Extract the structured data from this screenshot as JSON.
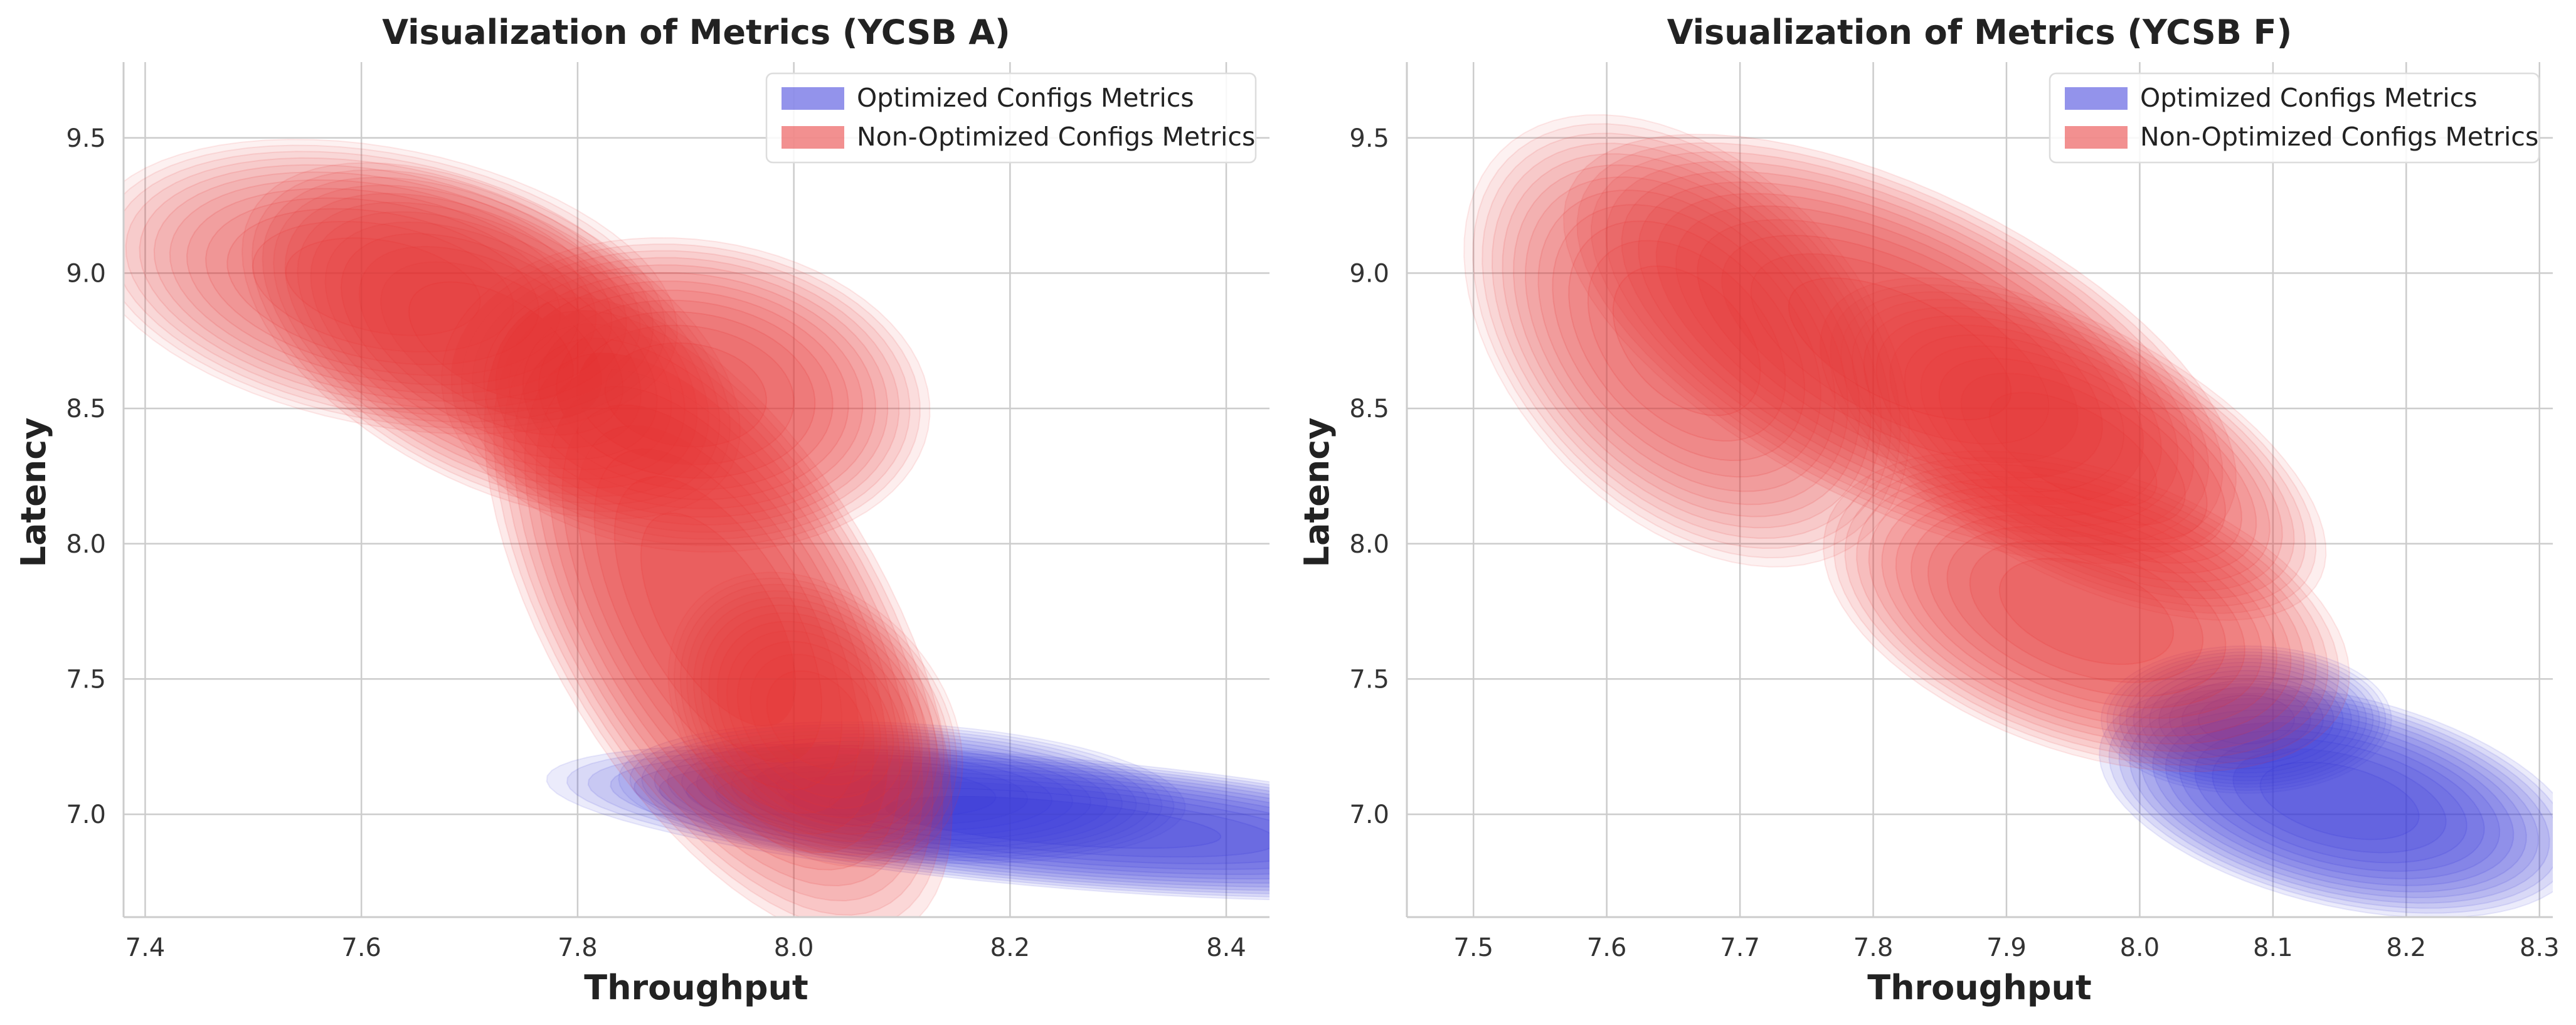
{
  "chart_data": [
    {
      "type": "kde",
      "title": "Visualization of Metrics (YCSB A)",
      "xlabel": "Throughput",
      "ylabel": "Latency",
      "xlim": [
        7.38,
        8.44
      ],
      "ylim": [
        6.62,
        9.78
      ],
      "xticks": [
        7.4,
        7.6,
        7.8,
        8.0,
        8.2,
        8.4
      ],
      "yticks": [
        7.0,
        7.5,
        8.0,
        8.5,
        9.0,
        9.5
      ],
      "grid": true,
      "legend_position": "top-right",
      "series": [
        {
          "name": "Optimized Configs Metrics",
          "color": "#3b3bdb",
          "modes": [
            {
              "x": 8.24,
              "y": 6.97,
              "sx": 0.13,
              "sy": 0.08,
              "rho": -0.55,
              "w": 1.0
            },
            {
              "x": 8.1,
              "y": 7.08,
              "sx": 0.09,
              "sy": 0.09,
              "rho": -0.2,
              "w": 0.45
            }
          ]
        },
        {
          "name": "Non-Optimized Configs Metrics",
          "color": "#e83535",
          "modes": [
            {
              "x": 7.93,
              "y": 7.72,
              "sx": 0.06,
              "sy": 0.33,
              "rho": -0.6,
              "w": 1.0
            },
            {
              "x": 7.9,
              "y": 8.55,
              "sx": 0.07,
              "sy": 0.18,
              "rho": -0.1,
              "w": 0.7
            },
            {
              "x": 7.72,
              "y": 8.75,
              "sx": 0.07,
              "sy": 0.2,
              "rho": -0.5,
              "w": 0.75
            },
            {
              "x": 7.62,
              "y": 8.95,
              "sx": 0.1,
              "sy": 0.2,
              "rho": -0.3,
              "w": 0.3
            },
            {
              "x": 8.02,
              "y": 7.35,
              "sx": 0.05,
              "sy": 0.2,
              "rho": -0.3,
              "w": 0.3
            }
          ]
        }
      ]
    },
    {
      "type": "kde",
      "title": "Visualization of Metrics (YCSB F)",
      "xlabel": "Throughput",
      "ylabel": "Latency",
      "xlim": [
        7.45,
        8.31
      ],
      "ylim": [
        6.62,
        9.78
      ],
      "xticks": [
        7.5,
        7.6,
        7.7,
        7.8,
        7.9,
        8.0,
        8.1,
        8.2,
        8.3
      ],
      "yticks": [
        7.0,
        7.5,
        8.0,
        8.5,
        9.0,
        9.5
      ],
      "grid": true,
      "legend_position": "top-right",
      "series": [
        {
          "name": "Optimized Configs Metrics",
          "color": "#3b3bdb",
          "modes": [
            {
              "x": 8.15,
              "y": 7.05,
              "sx": 0.05,
              "sy": 0.12,
              "rho": -0.4,
              "w": 1.0
            },
            {
              "x": 8.08,
              "y": 7.35,
              "sx": 0.04,
              "sy": 0.1,
              "rho": 0.0,
              "w": 0.3
            }
          ]
        },
        {
          "name": "Non-Optimized Configs Metrics",
          "color": "#e83535",
          "modes": [
            {
              "x": 7.82,
              "y": 8.72,
              "sx": 0.07,
              "sy": 0.22,
              "rho": -0.6,
              "w": 1.0
            },
            {
              "x": 7.95,
              "y": 8.35,
              "sx": 0.06,
              "sy": 0.2,
              "rho": -0.6,
              "w": 0.65
            },
            {
              "x": 7.96,
              "y": 7.75,
              "sx": 0.06,
              "sy": 0.18,
              "rho": -0.4,
              "w": 0.75
            },
            {
              "x": 7.66,
              "y": 8.75,
              "sx": 0.06,
              "sy": 0.3,
              "rho": -0.4,
              "w": 0.35
            }
          ]
        }
      ]
    }
  ]
}
